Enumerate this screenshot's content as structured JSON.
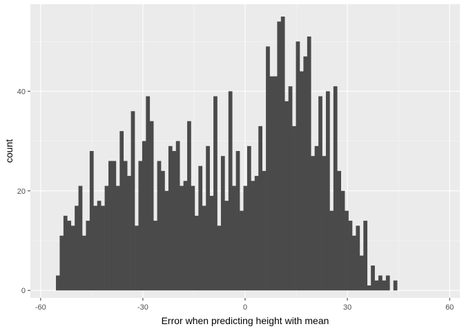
{
  "chart_data": {
    "type": "bar",
    "subtype": "histogram",
    "title": "",
    "xlabel": "Error when predicting height with mean",
    "ylabel": "count",
    "xlim": [
      -63,
      63
    ],
    "ylim": [
      -1.5,
      57.5
    ],
    "xticks": [
      -60,
      -30,
      0,
      30,
      60
    ],
    "yticks": [
      0,
      20,
      40
    ],
    "xtick_labels": [
      "-60",
      "-30",
      "0",
      "30",
      "60"
    ],
    "ytick_labels": [
      "0",
      "20",
      "40"
    ],
    "bin_width": 1.1,
    "bin_start": -55.5,
    "counts": [
      3,
      11,
      15,
      14,
      13,
      17,
      21,
      11,
      14,
      28,
      17,
      18,
      17,
      21,
      26,
      26,
      21,
      32,
      26,
      23,
      36,
      13,
      26,
      30,
      39,
      34,
      14,
      26,
      24,
      20,
      29,
      28,
      30,
      21,
      22,
      34,
      21,
      15,
      25,
      17,
      29,
      19,
      39,
      13,
      27,
      18,
      40,
      21,
      28,
      16,
      21,
      29,
      22,
      23,
      33,
      24,
      49,
      43,
      43,
      54,
      55,
      38,
      41,
      33,
      50,
      44,
      47,
      51,
      27,
      29,
      39,
      27,
      40,
      16,
      41,
      24,
      20,
      16,
      14,
      11,
      13,
      7,
      14,
      1,
      5,
      2,
      3,
      2,
      3,
      0,
      2
    ],
    "grid": true,
    "legend": "none",
    "colors": {
      "panel_background": "#ebebeb",
      "grid_major": "#ffffff",
      "bar_fill": "#4a4a4a",
      "tick_text": "#4d4d4d",
      "tick_mark": "#333333",
      "axis_title": "#000000"
    }
  }
}
